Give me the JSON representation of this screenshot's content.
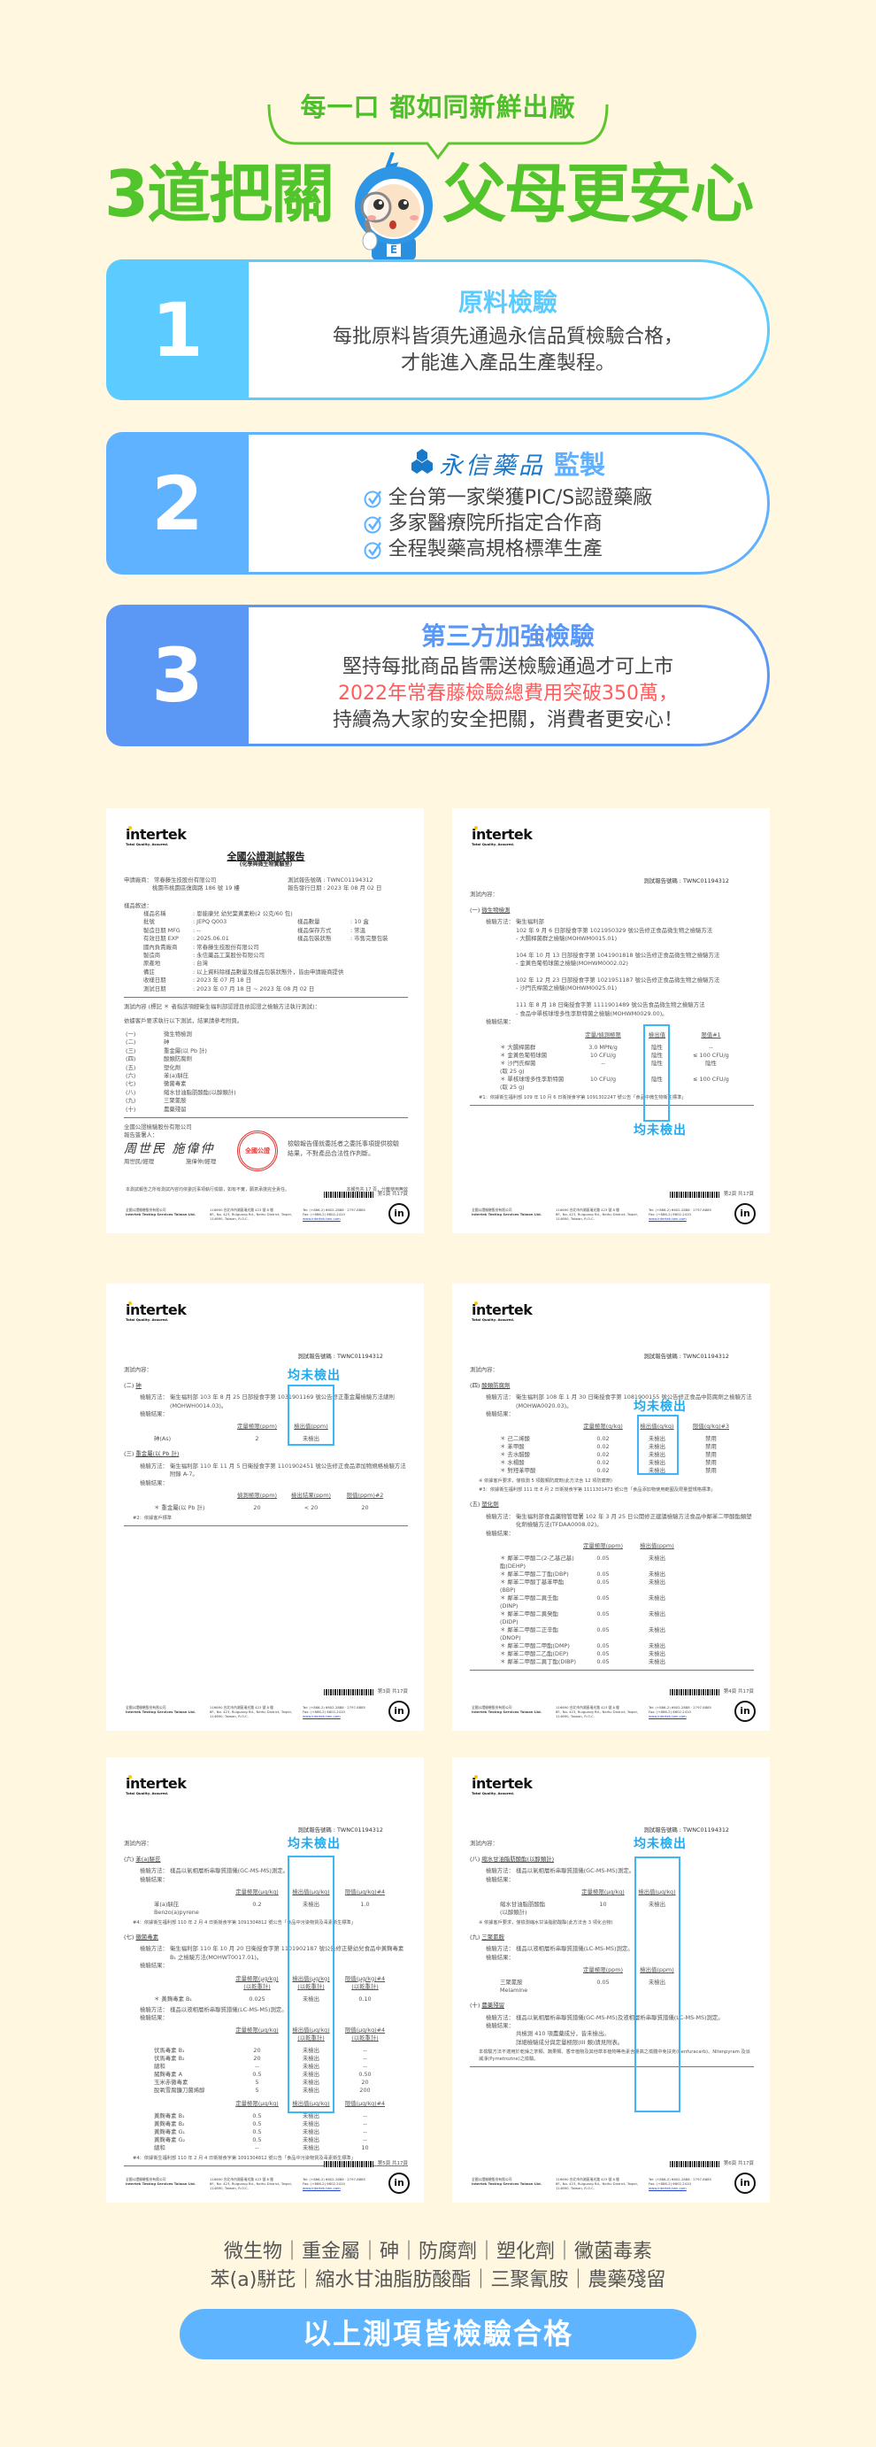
{
  "header": {
    "tagline": "每一口 都如同新鮮出廠",
    "title_left": "3道把關",
    "title_right": "父母更安心"
  },
  "colors": {
    "background": "#fff7e0",
    "green": "#52c42c",
    "card1": "#5ccbff",
    "card2": "#5fb2ff",
    "card3": "#5b97f5",
    "highlight": "#ff5b5b",
    "callout": "#21aaf0"
  },
  "cards": [
    {
      "number": "1",
      "title": "原料檢驗",
      "lines": [
        "每批原料皆須先通過永信品質檢驗合格，",
        "才能進入產品生產製程。"
      ]
    },
    {
      "number": "2",
      "brand": "永信藥品",
      "title": "監製",
      "checks": [
        "全台第一家榮獲PIC/S認證藥廠",
        "多家醫療院所指定合作商",
        "全程製藥高規格標準生產"
      ]
    },
    {
      "number": "3",
      "title": "第三方加強檢驗",
      "lines": [
        "堅持每批商品皆需送檢驗通過才可上市",
        "2022年常春藤檢驗總費用突破350萬，",
        "持續為大家的安全把關，消費者更安心！"
      ]
    }
  ],
  "labels": {
    "report_no_label": "測試報告號碼",
    "report_no": "TWNC01194312",
    "content_label": "測試內容：",
    "method_label": "檢驗方法：",
    "result_label": "檢驗結果："
  },
  "footer_common": {
    "company_zh": "全國公證檢驗股份有限公司",
    "company_en": "Intertek Testing Services Taiwan Ltd.",
    "addr_zh": "116690 台北市內湖區瑞光路 423 號 8 樓",
    "addr_en": "8F., No. 423, Ruiguang Rd., Neihu District, Taipei, 114690, Taiwan, R.O.C.",
    "tel": "Tel: (+886-2) 6602-2888 · 2797-8885",
    "fax": "Fax: (+886-2) 6602-2410",
    "web": "www.intertek-twn.com",
    "logo": "intertek",
    "logo_sub": "Total Quality. Assured."
  },
  "cover": {
    "title": "全國公證測試報告",
    "subtitle": "(化學與微生物實驗室)",
    "applicant_label": "申請廠商：",
    "applicant": "常春藤生技股份有限公司",
    "applicant_addr": "桃園市桃園區復興路 186 號 19 樓",
    "issue_label": "報告發行日期",
    "issue_date": "2023 年 08 月 02 日",
    "sample_label": "樣品敘述：",
    "sample_fields": [
      [
        "樣品名稱",
        "恩能康兒 幼兒葉黃素粉(2 公克/60 包)"
      ],
      [
        "批號",
        "JEPQ Q003",
        "樣品數量",
        "10 盒"
      ],
      [
        "製造日期 MFG",
        "--",
        "樣品保存方式",
        "常溫"
      ],
      [
        "有效日期 EXP",
        "2025.06.01",
        "樣品包裝狀態",
        "市售完整包裝"
      ],
      [
        "國內負責廠商",
        "常春藤生技股份有限公司"
      ],
      [
        "製造商",
        "永信藥品工業股份有限公司"
      ],
      [
        "原產地",
        "台灣"
      ],
      [
        "備註",
        "以上資料除樣品數量及樣品包裝狀態外，皆由申請廠商提供"
      ],
      [
        "收樣日期",
        "2023 年 07 月 18 日"
      ],
      [
        "測試日期",
        "2023 年 07 月 18 日 ~ 2023 年 08 月 02 日"
      ]
    ],
    "content_note": "測試內容 (標記 ＊ 者指該項經衛生福利部認證且依認證之檢驗方法執行測試)：",
    "request_note": "依據客戶要求執行以下測試，結果請參考附頁。",
    "items": [
      [
        "(一)",
        "微生物檢測"
      ],
      [
        "(二)",
        "砷"
      ],
      [
        "(三)",
        "重金屬(以 Pb 計)"
      ],
      [
        "(四)",
        "酸類防腐劑"
      ],
      [
        "(五)",
        "塑化劑"
      ],
      [
        "(六)",
        "苯(a)駢芘"
      ],
      [
        "(七)",
        "黴菌毒素"
      ],
      [
        "(八)",
        "縮水甘油脂肪酸酯(以醇類計)"
      ],
      [
        "(九)",
        "三聚氰胺"
      ],
      [
        "(十)",
        "農藥殘留"
      ]
    ],
    "signer_company": "全國公證檢驗股份有限公司",
    "signer_label": "報告簽署人：",
    "signers": [
      "周世民/經理",
      "施偉仲/經理"
    ],
    "stamp": "全國公證",
    "disclaimer": "檢驗報告僅就委託者之委託事項提供檢驗結果，不對產品合法性作判斷。",
    "responsibility": "本測試報告之所有測試內容均依委託事項執行檢驗，如有不實，願意承擔完全責任。",
    "page_total_note": "本報告共 17 頁，分離使用無效",
    "page": "第1頁 共17頁"
  },
  "docs": [
    {
      "page": "第2頁 共17頁",
      "callout": "均未檢出",
      "sections": [
        {
          "no": "(一)",
          "title": "微生物檢測",
          "blocks": [
            {
              "method": [
                "衛生福利部",
                "102 年 9 月 6 日部授食字第 1021950329 號公告修正食品微生物之檢驗方法",
                "- 大腸桿菌群之檢驗(MOHWM0015.01)",
                "",
                "104 年 10 月 13 日部授食字第 1041901818 號公告修正食品微生物之檢驗方法",
                "- 金黃色葡萄球菌之檢驗(MOHWM0002.02)",
                "",
                "102 年 12 月 23 日部授食字第 1021951187 號公告修正食品微生物之檢驗方法",
                "- 沙門氏桿菌之檢驗(MOHWM0025.01)",
                "",
                "111 年 8 月 18 日衛授食字第 1111901489 號公告食品微生物之檢驗方法",
                "- 食品中單核球增多性李斯特菌之檢驗(MOHWM0029.00)。"
              ],
              "tables": [
                {
                  "headers": [
                    "",
                    "定量/偵測極限",
                    "檢出值",
                    "限值#1"
                  ],
                  "rows": [
                    [
                      "＊ 大腸桿菌群",
                      "3.0 MPN/g",
                      "陰性",
                      "--"
                    ],
                    [
                      "＊ 金黃色葡萄球菌",
                      "10 CFU/g",
                      "陰性",
                      "≤ 100 CFU/g"
                    ],
                    [
                      "＊ 沙門氏桿菌\n(取 25 g)",
                      "--",
                      "陰性",
                      "陰性"
                    ],
                    [
                      "＊ 單核球增多性李斯特菌\n(取 25 g)",
                      "10 CFU/g",
                      "陰性",
                      "≤ 100 CFU/g"
                    ]
                  ]
                }
              ],
              "notes": [
                "#1：依據衛生福利部 109 年 10 月 6 日衛授食字第 1091302247 號公告「食品中微生物衛生標準」"
              ]
            }
          ]
        }
      ]
    },
    {
      "page": "第3頁 共17頁",
      "callout": "均未檢出",
      "sections": [
        {
          "no": "(二)",
          "title": "砷",
          "blocks": [
            {
              "method": [
                "衛生福利部 103 年 8 月 25 日部授食字第 1031901169 號公告修正重金屬檢驗方法總則(MOHWH0014.03)。"
              ],
              "tables": [
                {
                  "headers": [
                    "",
                    "定量極限(ppm)",
                    "檢出值(ppm)"
                  ],
                  "rows": [
                    [
                      "砷(As)",
                      "2",
                      "未檢出"
                    ]
                  ]
                }
              ],
              "notes": []
            }
          ]
        },
        {
          "no": "(三)",
          "title": "重金屬(以 Pb 計)",
          "blocks": [
            {
              "method": [
                "衛生福利部 110 年 11 月 5 日衛授食字第 1101902451 號公告修正食品添加物規格檢驗方法附錄 A-7。"
              ],
              "tables": [
                {
                  "headers": [
                    "",
                    "偵測極限(ppm)",
                    "檢出結果(ppm)",
                    "限值(ppm)#2"
                  ],
                  "rows": [
                    [
                      "＊ 重金屬(以 Pb 計)",
                      "20",
                      "< 20",
                      "20"
                    ]
                  ]
                }
              ],
              "notes": [
                "#2：依據客戶標準"
              ]
            }
          ]
        }
      ]
    },
    {
      "page": "第4頁 共17頁",
      "callout": "均未檢出",
      "sections": [
        {
          "no": "(四)",
          "title": "酸類防腐劑",
          "blocks": [
            {
              "method": [
                "衛生福利部 108 年 1 月 30 日衛授食字第 1081900155 號公告修正食品中防腐劑之檢驗方法(MOHWA0020.03)。"
              ],
              "tables": [
                {
                  "headers": [
                    "",
                    "定量極限(g/kg)",
                    "檢出值(g/kg)",
                    "限值(g/kg)#3"
                  ],
                  "rows": [
                    [
                      "＊ 己二烯酸",
                      "0.02",
                      "未檢出",
                      "禁用"
                    ],
                    [
                      "＊ 苯甲酸",
                      "0.02",
                      "未檢出",
                      "禁用"
                    ],
                    [
                      "＊ 去水醋酸",
                      "0.02",
                      "未檢出",
                      "禁用"
                    ],
                    [
                      "＊ 水楊酸",
                      "0.02",
                      "未檢出",
                      "禁用"
                    ],
                    [
                      "＊ 對羥苯甲酸",
                      "0.02",
                      "未檢出",
                      "禁用"
                    ]
                  ]
                }
              ],
              "notes": [
                "※ 依據客戶要求，僅檢測 5 項酸類防腐劑(此方法含 12 項防腐劑)",
                "#3：依據衛生福利部 111 年 8 月 2 日衛授食字第 1111301473 號公告「食品添加物使用範圍及限量暨規格標準」"
              ]
            }
          ]
        },
        {
          "no": "(五)",
          "title": "塑化劑",
          "blocks": [
            {
              "method": [
                "衛生福利部食品藥物管理署 102 年 3 月 25 日公開修正建議檢驗方法食品中鄰苯二甲酸酯類塑化劑檢驗方法(TFDAA0008.02)。"
              ],
              "tables": [
                {
                  "headers": [
                    "",
                    "定量極限(ppm)",
                    "檢出值(ppm)"
                  ],
                  "rows": [
                    [
                      "＊ 鄰苯二甲酸二(2-乙基己基)酯(DEHP)",
                      "0.05",
                      "未檢出"
                    ],
                    [
                      "＊ 鄰苯二甲酸二丁酯(DBP)",
                      "0.05",
                      "未檢出"
                    ],
                    [
                      "＊ 鄰苯二甲酸丁基苯甲酯(BBP)",
                      "0.05",
                      "未檢出"
                    ],
                    [
                      "＊ 鄰苯二甲酸二異壬酯(DINP)",
                      "0.05",
                      "未檢出"
                    ],
                    [
                      "＊ 鄰苯二甲酸二異癸酯(DIDP)",
                      "0.05",
                      "未檢出"
                    ],
                    [
                      "＊ 鄰苯二甲酸二正辛酯(DNOP)",
                      "0.05",
                      "未檢出"
                    ],
                    [
                      "＊ 鄰苯二甲酸二甲酯(DMP)",
                      "0.05",
                      "未檢出"
                    ],
                    [
                      "＊ 鄰苯二甲酸二乙酯(DEP)",
                      "0.05",
                      "未檢出"
                    ],
                    [
                      "＊ 鄰苯二甲酸二異丁酯(DIBP)",
                      "0.05",
                      "未檢出"
                    ]
                  ]
                }
              ],
              "notes": []
            }
          ]
        }
      ]
    },
    {
      "page": "第5頁 共17頁",
      "callout": "均未檢出",
      "sections": [
        {
          "no": "(六)",
          "title": "苯(a)駢芘",
          "blocks": [
            {
              "method": [
                "樣品以氣相層析串聯質譜儀(GC-MS-MS)測定。"
              ],
              "tables": [
                {
                  "headers": [
                    "",
                    "定量極限(μg/kg)",
                    "檢出值(μg/kg)",
                    "限值(μg/kg)#4"
                  ],
                  "rows": [
                    [
                      "苯(a)駢芘\nBenzo(a)pyrene",
                      "0.2",
                      "未檢出",
                      "1.0"
                    ]
                  ]
                }
              ],
              "notes": [
                "#4：依據衛生福利部 110 年 2 月 4 日衛授食字第 1091304812 號公告「食品中污染物質及毒素衛生標準」"
              ]
            }
          ]
        },
        {
          "no": "(七)",
          "title": "黴菌毒素",
          "blocks": [
            {
              "method": [
                "衛生福利部 110 年 10 月 20 日衛授食字第 1101902187 號公告修正嬰幼兒食品中黃麴毒素 B₁ 之檢驗方法(MOHWT0017.01)。"
              ],
              "tables": [
                {
                  "headers": [
                    "",
                    "定量極限(μg/kg)\n(以乾重計)",
                    "檢出值(μg/kg)\n(以乾重計)",
                    "限值(μg/kg)#4\n(以乾重計)"
                  ],
                  "rows": [
                    [
                      "＊ 黃麴毒素 B₁",
                      "0.025",
                      "未檢出",
                      "0.10"
                    ]
                  ]
                }
              ],
              "notes": []
            },
            {
              "method": [
                "樣品以液相層析串聯質譜儀(LC-MS-MS)測定。"
              ],
              "tables": [
                {
                  "headers": [
                    "",
                    "定量極限(μg/kg)",
                    "檢出值(μg/kg)\n(以乾重計)",
                    "限值(μg/kg)#4\n(以乾重計)"
                  ],
                  "rows": [
                    [
                      "伏馬毒素 B₁",
                      "20",
                      "未檢出",
                      "--"
                    ],
                    [
                      "伏馬毒素 B₂",
                      "20",
                      "未檢出",
                      "--"
                    ],
                    [
                      "總和",
                      "--",
                      "未檢出",
                      "--"
                    ],
                    [
                      "赭麴毒素 A",
                      "0.5",
                      "未檢出",
                      "0.50"
                    ],
                    [
                      "玉米赤黴毒素",
                      "5",
                      "未檢出",
                      "20"
                    ],
                    [
                      "脫氧雪腐鐮刀菌烯醇",
                      "5",
                      "未檢出",
                      "200"
                    ]
                  ]
                },
                {
                  "headers": [
                    "",
                    "定量極限(μg/kg)",
                    "檢出值(μg/kg)",
                    "限值(μg/kg)#4"
                  ],
                  "rows": [
                    [
                      "黃麴毒素 B₁",
                      "0.5",
                      "未檢出",
                      "--"
                    ],
                    [
                      "黃麴毒素 B₂",
                      "0.5",
                      "未檢出",
                      "--"
                    ],
                    [
                      "黃麴毒素 G₁",
                      "0.5",
                      "未檢出",
                      "--"
                    ],
                    [
                      "黃麴毒素 G₂",
                      "0.5",
                      "未檢出",
                      "--"
                    ],
                    [
                      "總和",
                      "--",
                      "未檢出",
                      "10"
                    ]
                  ]
                }
              ],
              "notes": [
                "#4：依據衛生福利部 110 年 2 月 4 日衛授食字第 1091304812 號公告「食品中污染物質及毒素衛生標準」"
              ]
            }
          ]
        }
      ]
    },
    {
      "page": "第6頁 共17頁",
      "callout": "均未檢出",
      "sections": [
        {
          "no": "(八)",
          "title": "縮水甘油脂肪酸酯(以醇類計)",
          "blocks": [
            {
              "method": [
                "樣品以氣相層析串聯質譜儀(GC-MS-MS)測定。"
              ],
              "tables": [
                {
                  "headers": [
                    "",
                    "定量極限(μg/kg)",
                    "檢出值(μg/kg)"
                  ],
                  "rows": [
                    [
                      "縮水甘油脂肪酸酯\n(以醇類計)",
                      "10",
                      "未檢出"
                    ]
                  ]
                }
              ],
              "notes": [
                "※ 依據客戶要求，僅檢測縮水甘油脂肪酸酯(此方法含 3 項化合物)"
              ]
            }
          ]
        },
        {
          "no": "(九)",
          "title": "三聚氰胺",
          "blocks": [
            {
              "method": [
                "樣品以液相層析串聯質譜儀(LC-MS-MS)測定。"
              ],
              "tables": [
                {
                  "headers": [
                    "",
                    "定量極限(ppm)",
                    "檢出值(ppm)"
                  ],
                  "rows": [
                    [
                      "三聚氰胺\nMelamine",
                      "0.05",
                      "未檢出"
                    ]
                  ]
                }
              ],
              "notes": []
            }
          ]
        },
        {
          "no": "(十)",
          "title": "農藥殘留",
          "blocks": [
            {
              "method": [
                "樣品以氣相層析串聯質譜儀(GC-MS-MS)及液相層析串聯質譜儀(LC-MS-MS)測定。"
              ],
              "text": [
                "共檢測 410 項農藥成分，皆未檢出。",
                "詳細檢驗成分與定量極限(III 類)請見附表。"
              ],
              "tables": [],
              "notes": [
                "本檢驗方法不適用於乾燥之茶類、蔬果類、香辛植物及其他草本植物等色素含量高之檢體中免扶克(Benfuracarb)、Nitenpyram 及派滅淨(Pymetrozine)之檢驗。"
              ]
            }
          ]
        }
      ]
    }
  ],
  "bottom": {
    "items_line1": "微生物｜重金屬｜砷｜防腐劑｜塑化劑｜黴菌毒素",
    "items_line2": "苯(a)駢芘｜縮水甘油脂肪酸酯｜三聚氰胺｜農藥殘留",
    "button": "以上測項皆檢驗合格"
  }
}
